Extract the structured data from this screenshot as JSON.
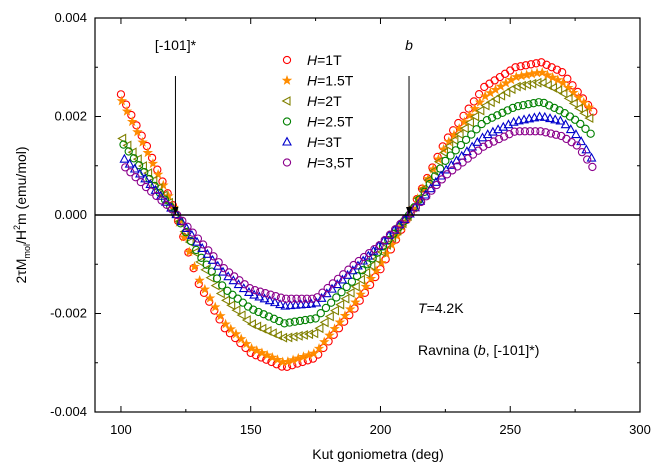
{
  "chart_data": {
    "type": "scatter",
    "xlabel": "Kut goniometra (deg)",
    "ylabel": {
      "lead": "2τM",
      "sub": "mol",
      "mid": "/H",
      "sup": "2",
      "tail": "m (emu/mol)"
    },
    "xlim": [
      90,
      300
    ],
    "ylim": [
      -0.004,
      0.004
    ],
    "x_ticks": [
      100,
      150,
      200,
      250,
      300
    ],
    "y_ticks": [
      -0.004,
      -0.002,
      0.0,
      0.002,
      0.004
    ],
    "x_tick_labels": [
      "100",
      "150",
      "200",
      "250",
      "300"
    ],
    "y_tick_labels": [
      "-0.004",
      "-0.002",
      "0.000",
      "0.002",
      "0.004"
    ],
    "grid": false,
    "legend_position": "upper-center",
    "zero_line": true,
    "annotations": [
      {
        "text": "[-101]*",
        "x": 121,
        "arrow_to_y": 0.0
      },
      {
        "text": "b",
        "x": 211,
        "arrow_to_y": 0.0
      }
    ],
    "text_labels": {
      "temperature": {
        "italic": "T",
        "rest": "=4.2K"
      },
      "plane": {
        "before": "Ravnina (",
        "italic": "b",
        "after": ", [-101]*)"
      }
    },
    "series_style": {
      "x_start": 100,
      "x_end": 282,
      "step": 2,
      "amplitude_samples": [
        [
          100,
          0.00245,
          0.00235,
          0.0016,
          0.0015,
          0.0012,
          0.00105
        ],
        [
          110,
          0.0014,
          0.0013,
          0.0009,
          0.0008,
          0.0007,
          0.00055
        ],
        [
          120,
          0.0002,
          0.0002,
          0.00015,
          0.0001,
          0.0001,
          0.0001
        ],
        [
          130,
          -0.0014,
          -0.0013,
          -0.0009,
          -0.0008,
          -0.0006,
          -0.0005
        ],
        [
          140,
          -0.0023,
          -0.0022,
          -0.0017,
          -0.0015,
          -0.0012,
          -0.0011
        ],
        [
          150,
          -0.0028,
          -0.0027,
          -0.0022,
          -0.0019,
          -0.0016,
          -0.0015
        ],
        [
          163,
          -0.0031,
          -0.003,
          -0.0025,
          -0.0022,
          -0.00185,
          -0.0017
        ],
        [
          175,
          -0.0029,
          -0.0028,
          -0.0024,
          -0.0021,
          -0.0018,
          -0.0017
        ],
        [
          190,
          -0.0019,
          -0.0018,
          -0.0015,
          -0.0013,
          -0.0011,
          -0.001
        ],
        [
          200,
          -0.0011,
          -0.001,
          -0.0008,
          -0.0007,
          -0.0006,
          -0.0006
        ],
        [
          211,
          0.0,
          0.0,
          0.0,
          0.0,
          0.0,
          0.0
        ],
        [
          225,
          0.0015,
          0.0014,
          0.0013,
          0.0011,
          0.0009,
          0.0008
        ],
        [
          240,
          0.0026,
          0.0024,
          0.0022,
          0.0019,
          0.0016,
          0.0014
        ],
        [
          252,
          0.003,
          0.0028,
          0.0026,
          0.0022,
          0.0019,
          0.0017
        ],
        [
          262,
          0.0031,
          0.0029,
          0.0027,
          0.0023,
          0.002,
          0.0017
        ],
        [
          270,
          0.0029,
          0.0027,
          0.0025,
          0.0021,
          0.0019,
          0.0016
        ],
        [
          276,
          0.0025,
          0.0024,
          0.0022,
          0.0019,
          0.0016,
          0.0014
        ],
        [
          282,
          0.0021,
          0.0021,
          0.0019,
          0.0016,
          0.0011,
          0.00095
        ]
      ]
    },
    "series": [
      {
        "name": "H=1T",
        "label_italic": "H",
        "label_rest": "=1T",
        "marker": "circle",
        "color": "#ff0000"
      },
      {
        "name": "H=1.5T",
        "label_italic": "H",
        "label_rest": "=1.5T",
        "marker": "star",
        "color": "#ff8c00"
      },
      {
        "name": "H=2T",
        "label_italic": "H",
        "label_rest": "=2T",
        "marker": "triangle-left",
        "color": "#808000"
      },
      {
        "name": "H=2.5T",
        "label_italic": "H",
        "label_rest": "=2.5T",
        "marker": "circle",
        "color": "#008000"
      },
      {
        "name": "H=3T",
        "label_italic": "H",
        "label_rest": "=3T",
        "marker": "triangle-up",
        "color": "#0000cc"
      },
      {
        "name": "H=3,5T",
        "label_italic": "H",
        "label_rest": "=3,5T",
        "marker": "circle",
        "color": "#8b008b"
      }
    ]
  }
}
